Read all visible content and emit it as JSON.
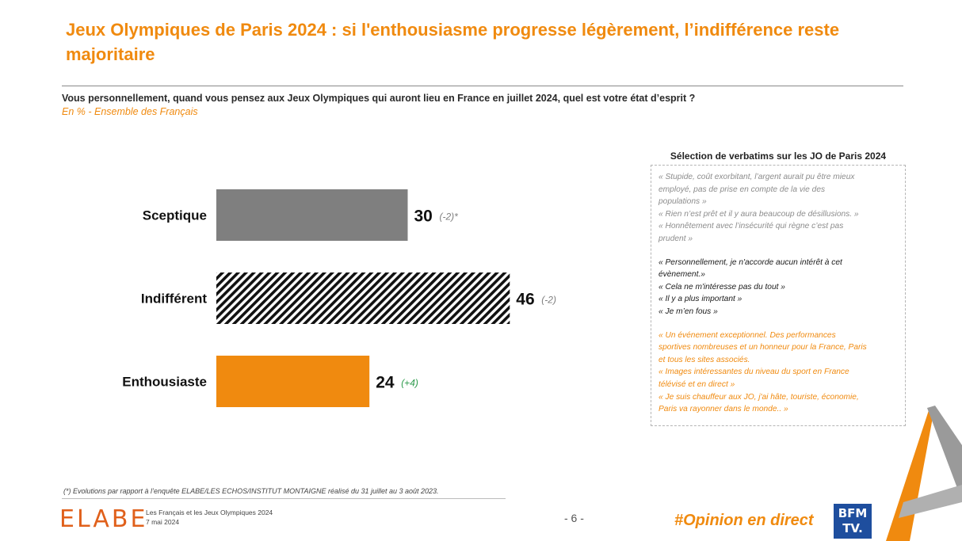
{
  "header": {
    "title": "Jeux Olympiques de Paris 2024 : si l'enthousiasme progresse légèrement, l’indifférence reste majoritaire",
    "question": "Vous personnellement, quand vous pensez aux Jeux Olympiques qui auront lieu en France en juillet 2024, quel est votre état d’esprit ?",
    "base": "En % - Ensemble des Français"
  },
  "chart_data": {
    "type": "bar",
    "orientation": "horizontal",
    "categories": [
      "Sceptique",
      "Indifférent",
      "Enthousiaste"
    ],
    "values": [
      30,
      46,
      24
    ],
    "changes": [
      "(-2)*",
      "(-2)",
      "(+4)"
    ],
    "bar_colors": [
      "#7f7f7f",
      "hatched-black",
      "#f08a0f"
    ],
    "change_colors": [
      "#7f7f7f",
      "#7f7f7f",
      "#2e9b4d"
    ],
    "value_unit": "%"
  },
  "verbatims": {
    "title": "Sélection de verbatims sur les JO de Paris 2024",
    "groups": [
      {
        "tone": "grey",
        "lines": [
          "« Stupide, coût exorbitant, l’argent aurait pu être mieux",
          "employé, pas de prise en compte de la vie des",
          "populations »",
          "«  Rien n’est prêt et il y aura beaucoup de désillusions. »",
          "«  Honnêtement avec l’insécurité qui règne c’est pas",
          "prudent »"
        ]
      },
      {
        "tone": "black",
        "lines": [
          "« Personnellement, je n'accorde aucun intérêt à cet",
          "évènement.»",
          "« Cela ne m'intéresse pas du tout »",
          "« Il y a plus important »",
          "« Je m’en fous »"
        ]
      },
      {
        "tone": "orange",
        "lines": [
          "« Un événement exceptionnel.  Des performances",
          "sportives nombreuses  et un honneur pour la France, Paris",
          "et tous les sites associés.",
          "« Images intéressantes du niveau du sport en France",
          "télévisé et en direct »",
          "« Je suis chauffeur aux JO, j'ai hâte, touriste, économie,",
          "Paris va rayonner dans le monde.. »"
        ]
      }
    ]
  },
  "footer": {
    "footnote": "(*) Evolutions par rapport à l’enquête ELABE/LES ECHOS/INSTITUT MONTAIGNE réalisé du 31 juillet au 3 août 2023.",
    "logo": "ELABE",
    "report_title": "Les Français et les Jeux Olympiques 2024",
    "report_date": "7 mai 2024",
    "page": "- 6 -",
    "hashtag": "#Opinion en direct",
    "partner_logo_line1": "BFM",
    "partner_logo_line2": "TV."
  },
  "colors": {
    "accent": "#f08a0f",
    "grey_bar": "#7f7f7f",
    "positive": "#2e9b4d"
  }
}
